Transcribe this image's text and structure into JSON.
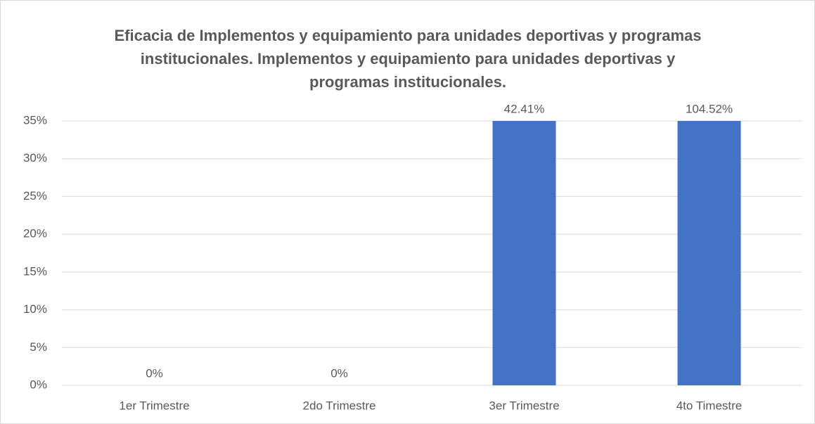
{
  "chart_data": {
    "type": "bar",
    "title": "Eficacia de Implementos y equipamiento para unidades deportivas y programas institucionales. Implementos y equipamiento para unidades deportivas y programas institucionales.",
    "categories": [
      "1er Trimestre",
      "2do Trimestre",
      "3er Trimestre",
      "4to Timestre"
    ],
    "values": [
      0,
      0,
      42.41,
      104.52
    ],
    "value_labels": [
      "0%",
      "0%",
      "42.41%",
      "104.52%"
    ],
    "color": "#4472c4",
    "ylim": [
      0,
      35
    ],
    "yticks": [
      {
        "value": 0,
        "label": "0%"
      },
      {
        "value": 5,
        "label": "5%"
      },
      {
        "value": 10,
        "label": "10%"
      },
      {
        "value": 15,
        "label": "15%"
      },
      {
        "value": 20,
        "label": "20%"
      },
      {
        "value": 25,
        "label": "25%"
      },
      {
        "value": 30,
        "label": "30%"
      },
      {
        "value": 35,
        "label": "35%"
      }
    ],
    "grid": true
  }
}
